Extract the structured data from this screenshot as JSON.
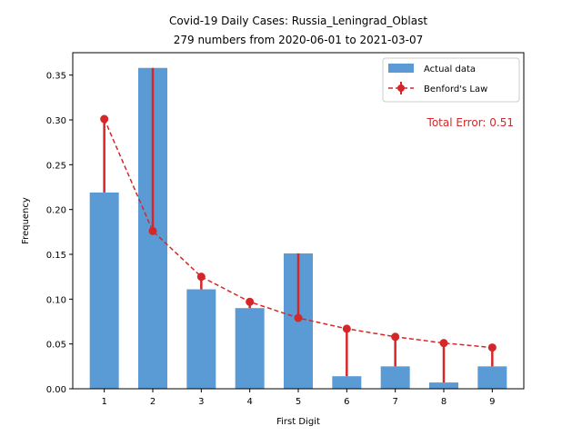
{
  "chart_data": {
    "type": "bar",
    "title": "Covid-19 Daily Cases: Russia_Leningrad_Oblast",
    "subtitle": "279 numbers from 2020-06-01 to 2021-03-07",
    "xlabel": "First Digit",
    "ylabel": "Frequency",
    "categories": [
      "1",
      "2",
      "3",
      "4",
      "5",
      "6",
      "7",
      "8",
      "9"
    ],
    "ylim": [
      0,
      0.375
    ],
    "yticks": [
      "0.00",
      "0.05",
      "0.10",
      "0.15",
      "0.20",
      "0.25",
      "0.30",
      "0.35"
    ],
    "grid": false,
    "legend_position": "top-right",
    "series": [
      {
        "name": "Actual data",
        "kind": "bar",
        "color": "#5b9bd5",
        "values": [
          0.219,
          0.358,
          0.111,
          0.09,
          0.151,
          0.014,
          0.025,
          0.007,
          0.025
        ]
      },
      {
        "name": "Benford's Law",
        "kind": "line",
        "color": "#d62728",
        "values": [
          0.301,
          0.176,
          0.125,
          0.097,
          0.079,
          0.067,
          0.058,
          0.051,
          0.046
        ]
      }
    ],
    "annotation": "Total Error: 0.51",
    "colors": {
      "bar": "#5b9bd5",
      "benford": "#d62728"
    }
  }
}
